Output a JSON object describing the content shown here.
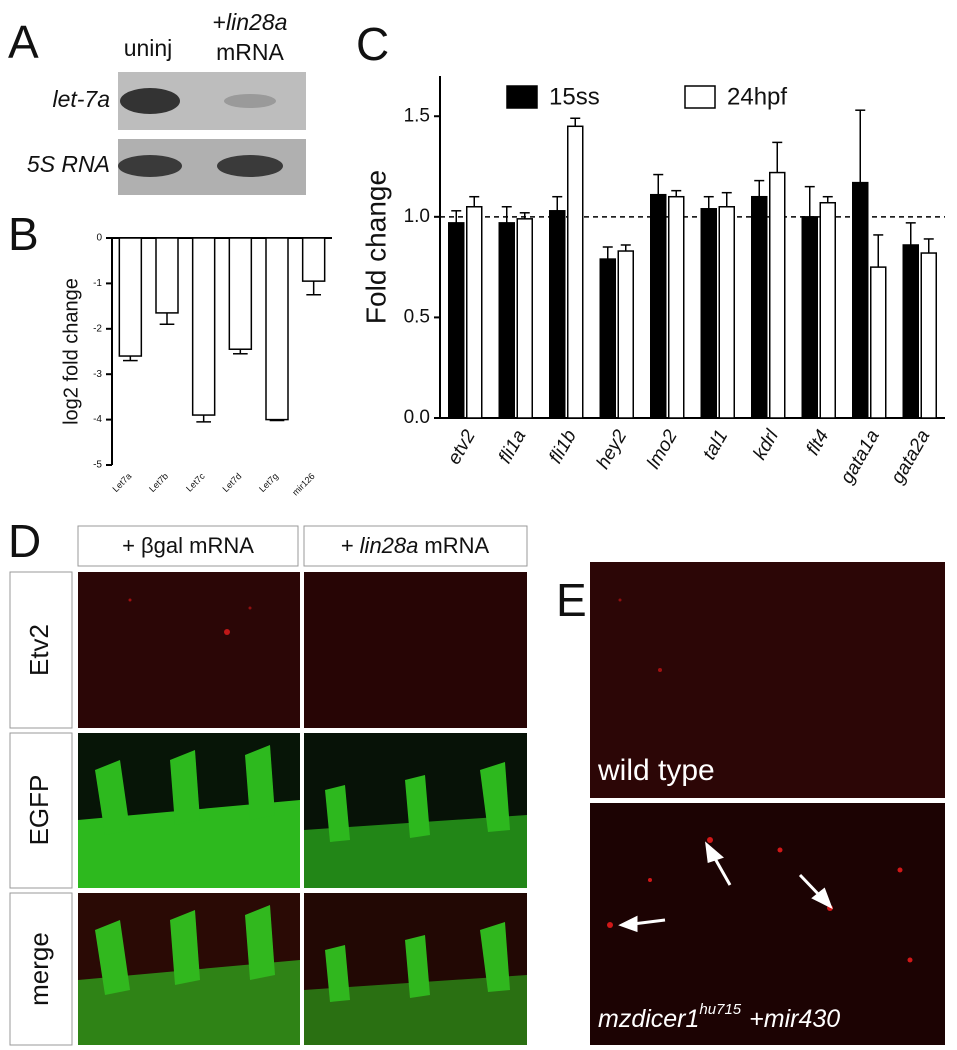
{
  "panel_labels": [
    "A",
    "B",
    "C",
    "D",
    "E"
  ],
  "panel_a": {
    "column_1": "uninj",
    "column_2": {
      "prefix": "+",
      "gene": "lin28a",
      "suffix": "mRNA"
    },
    "rows": [
      "let-7a",
      "5S RNA"
    ]
  },
  "chart_data": [
    {
      "type": "bar",
      "categories": [
        "Let7a",
        "Let7b",
        "Let7c",
        "Let7d",
        "Let7g",
        "mir126"
      ],
      "values": [
        -2.6,
        -1.65,
        -3.9,
        -2.45,
        -4.0,
        -0.95
      ],
      "errors": [
        0.1,
        0.25,
        0.15,
        0.1,
        0.02,
        0.3
      ],
      "color": "#ffffff",
      "y_label": "log2 fold change",
      "ylim": [
        -5,
        0
      ],
      "yticks": [
        0,
        -1,
        -2,
        -3,
        -4,
        -5
      ]
    },
    {
      "type": "grouped_bar",
      "categories": [
        "etv2",
        "fli1a",
        "fli1b",
        "hey2",
        "lmo2",
        "tal1",
        "kdrl",
        "flt4",
        "gata1a",
        "gata2a"
      ],
      "series": [
        {
          "name": "15ss",
          "color": "#000000",
          "values": [
            0.97,
            0.97,
            1.03,
            0.79,
            1.11,
            1.04,
            1.1,
            1.0,
            1.17,
            0.86
          ],
          "errors": [
            0.06,
            0.08,
            0.07,
            0.06,
            0.1,
            0.06,
            0.08,
            0.15,
            0.36,
            0.11
          ]
        },
        {
          "name": "24hpf",
          "color": "#ffffff",
          "values": [
            1.05,
            0.99,
            1.45,
            0.83,
            1.1,
            1.05,
            1.22,
            1.07,
            0.75,
            0.82
          ],
          "errors": [
            0.05,
            0.03,
            0.04,
            0.03,
            0.03,
            0.07,
            0.15,
            0.03,
            0.16,
            0.07
          ]
        }
      ],
      "y_label": "Fold change",
      "ylim": [
        0,
        1.7
      ],
      "yticks": [
        {
          "value": 0,
          "label": "0.0"
        },
        {
          "value": 0.5,
          "label": "0.5"
        },
        {
          "value": 1,
          "label": "1.0"
        },
        {
          "value": 1.5,
          "label": "1.5"
        }
      ],
      "reference_line": 1
    }
  ],
  "panel_d": {
    "column_1": "+ βgal mRNA",
    "column_2": {
      "prefix": "+",
      "gene": "lin28a",
      "suffix": "mRNA"
    },
    "rows": [
      "Etv2",
      "EGFP",
      "merge"
    ]
  },
  "panel_e": {
    "image_1": "wild type",
    "image_2": {
      "gene": "mzdicer1",
      "allele": "hu715",
      "suffix": "+mir430"
    }
  }
}
